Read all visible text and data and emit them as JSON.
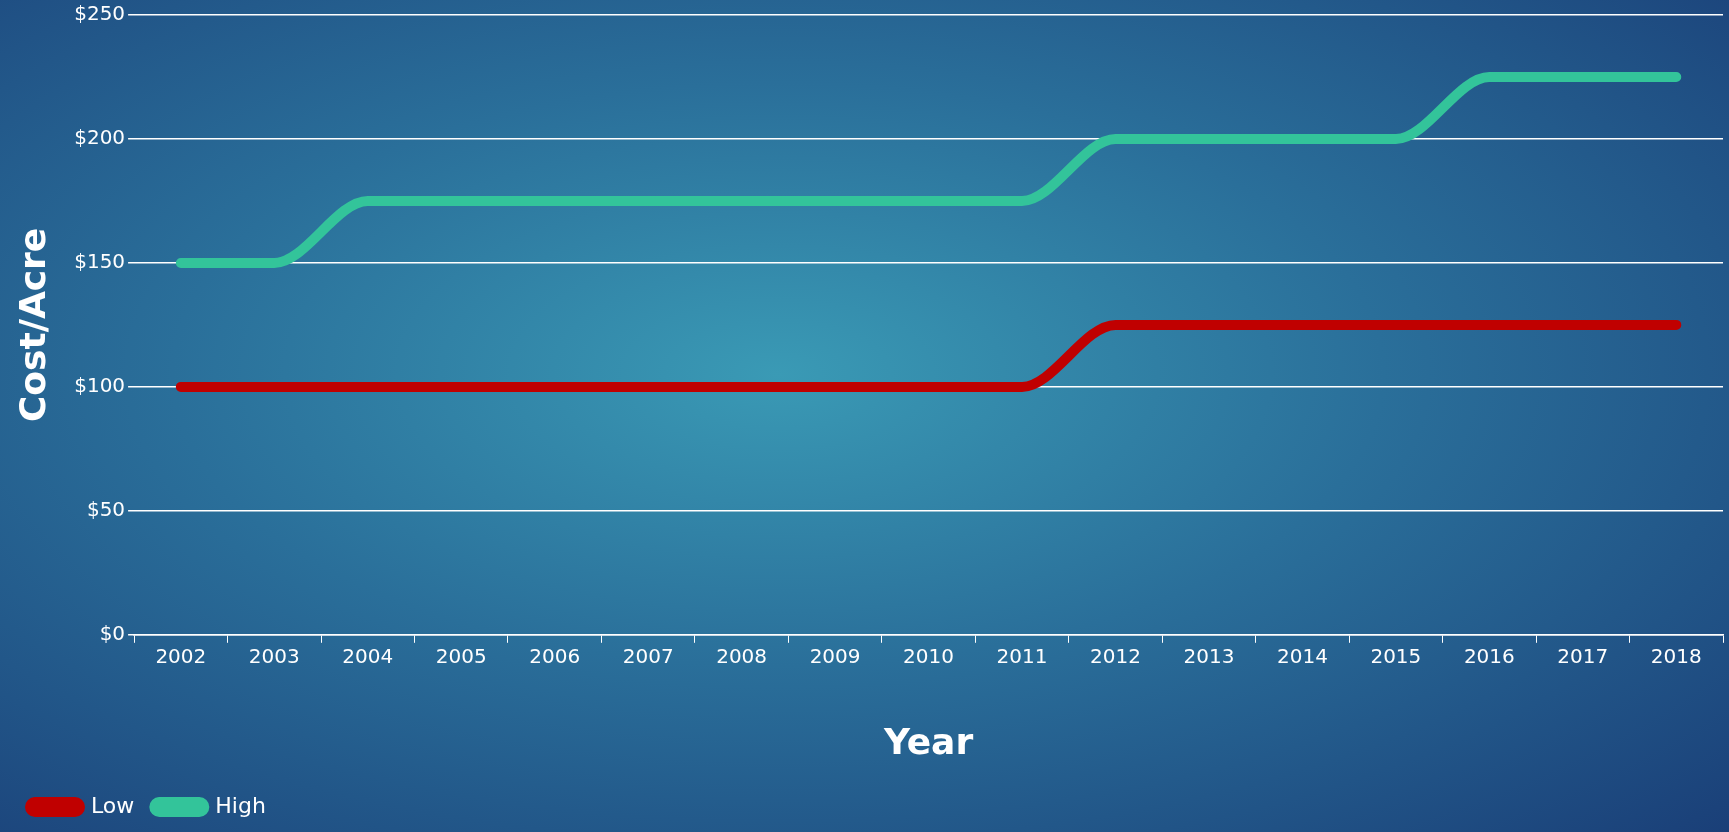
{
  "chart_data": {
    "type": "line",
    "xlabel": "Year",
    "ylabel": "Cost/Acre",
    "categories": [
      "2002",
      "2003",
      "2004",
      "2005",
      "2006",
      "2007",
      "2008",
      "2009",
      "2010",
      "2011",
      "2012",
      "2013",
      "2014",
      "2015",
      "2016",
      "2017",
      "2018"
    ],
    "series": [
      {
        "name": "Low",
        "color": "#c00000",
        "values": [
          100,
          100,
          100,
          100,
          100,
          100,
          100,
          100,
          100,
          100,
          125,
          125,
          125,
          125,
          125,
          125,
          125
        ]
      },
      {
        "name": "High",
        "color": "#33c49a",
        "values": [
          150,
          150,
          175,
          175,
          175,
          175,
          175,
          175,
          175,
          175,
          200,
          200,
          200,
          200,
          225,
          225,
          225
        ]
      }
    ],
    "ylim": [
      0,
      250
    ],
    "yticks": [
      {
        "value": 0,
        "label": "$0"
      },
      {
        "value": 50,
        "label": "$50"
      },
      {
        "value": 100,
        "label": "$100"
      },
      {
        "value": 150,
        "label": "$150"
      },
      {
        "value": 200,
        "label": "$200"
      },
      {
        "value": 250,
        "label": "$250"
      }
    ],
    "grid": "y",
    "legend": "bottom left",
    "marker": "none",
    "line_style": "solid"
  }
}
